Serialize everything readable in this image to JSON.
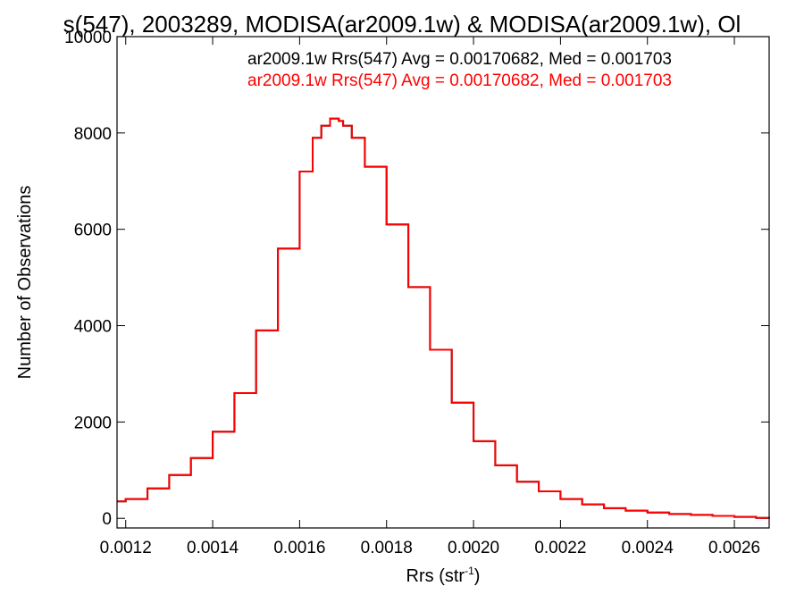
{
  "chart_data": {
    "type": "line",
    "title": "s(547), 2003289, MODISA(ar2009.1w) & MODISA(ar2009.1w), Ol",
    "xlabel_base": "Rrs (str",
    "xlabel_sup": "-1",
    "xlabel_close": ")",
    "ylabel": "Number of Observations",
    "xlim": [
      0.00118,
      0.00268
    ],
    "ylim": [
      -200,
      10000
    ],
    "x_ticks": [
      {
        "value": 0.0012,
        "label": "0.0012"
      },
      {
        "value": 0.0014,
        "label": "0.0014"
      },
      {
        "value": 0.0016,
        "label": "0.0016"
      },
      {
        "value": 0.0018,
        "label": "0.0018"
      },
      {
        "value": 0.002,
        "label": "0.0020"
      },
      {
        "value": 0.0022,
        "label": "0.0022"
      },
      {
        "value": 0.0024,
        "label": "0.0024"
      },
      {
        "value": 0.0026,
        "label": "0.0026"
      }
    ],
    "y_ticks": [
      {
        "value": 0,
        "label": "0"
      },
      {
        "value": 2000,
        "label": "2000"
      },
      {
        "value": 4000,
        "label": "4000"
      },
      {
        "value": 6000,
        "label": "6000"
      },
      {
        "value": 8000,
        "label": "8000"
      },
      {
        "value": 10000,
        "label": "10000"
      }
    ],
    "legend_placement": "top-right",
    "series": [
      {
        "name": "ar2009.1w Rrs(547) Avg = 0.00170682, Med = 0.001703",
        "color": "#000000",
        "x": [
          0.00118,
          0.0012,
          0.00125,
          0.0013,
          0.00135,
          0.0014,
          0.00145,
          0.0015,
          0.00155,
          0.0016,
          0.00163,
          0.00165,
          0.00167,
          0.00169,
          0.0017,
          0.00172,
          0.00175,
          0.0018,
          0.00185,
          0.0019,
          0.00195,
          0.002,
          0.00205,
          0.0021,
          0.00215,
          0.0022,
          0.00225,
          0.0023,
          0.00235,
          0.0024,
          0.00245,
          0.0025,
          0.00255,
          0.0026,
          0.00265,
          0.00268
        ],
        "y": [
          350,
          400,
          620,
          900,
          1250,
          1800,
          2600,
          3900,
          5600,
          7200,
          7900,
          8150,
          8300,
          8250,
          8150,
          7900,
          7300,
          6100,
          4800,
          3500,
          2400,
          1600,
          1100,
          760,
          560,
          400,
          290,
          210,
          160,
          120,
          90,
          70,
          50,
          30,
          10,
          0
        ]
      },
      {
        "name": "ar2009.1w Rrs(547) Avg = 0.00170682, Med = 0.001703",
        "color": "#ff0000",
        "x": [
          0.00118,
          0.0012,
          0.00125,
          0.0013,
          0.00135,
          0.0014,
          0.00145,
          0.0015,
          0.00155,
          0.0016,
          0.00163,
          0.00165,
          0.00167,
          0.00169,
          0.0017,
          0.00172,
          0.00175,
          0.0018,
          0.00185,
          0.0019,
          0.00195,
          0.002,
          0.00205,
          0.0021,
          0.00215,
          0.0022,
          0.00225,
          0.0023,
          0.00235,
          0.0024,
          0.00245,
          0.0025,
          0.00255,
          0.0026,
          0.00265,
          0.00268
        ],
        "y": [
          350,
          400,
          620,
          900,
          1250,
          1800,
          2600,
          3900,
          5600,
          7200,
          7900,
          8150,
          8300,
          8250,
          8150,
          7900,
          7300,
          6100,
          4800,
          3500,
          2400,
          1600,
          1100,
          760,
          560,
          400,
          290,
          210,
          160,
          120,
          90,
          70,
          50,
          30,
          10,
          0
        ]
      }
    ]
  }
}
